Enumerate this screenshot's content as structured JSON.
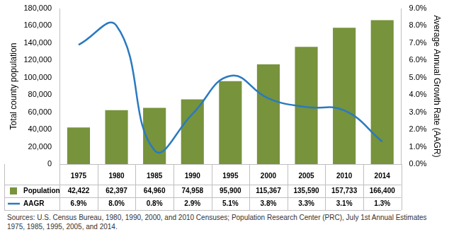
{
  "chart_data": {
    "type": "bar",
    "categories": [
      "1975",
      "1980",
      "1985",
      "1990",
      "1995",
      "2000",
      "2005",
      "2010",
      "2014"
    ],
    "series": [
      {
        "name": "Population",
        "type": "bar",
        "color": "#77933C",
        "values": [
          42422,
          62397,
          64960,
          74958,
          95900,
          115367,
          135590,
          157733,
          166400
        ],
        "value_labels": [
          "42,422",
          "62,397",
          "64,960",
          "74,958",
          "95,900",
          "115,367",
          "135,590",
          "157,733",
          "166,400"
        ]
      },
      {
        "name": "AAGR",
        "type": "line",
        "color": "#2A7ABF",
        "axis": "y2",
        "marker": "none",
        "line_style": "solid",
        "values": [
          6.9,
          8.0,
          0.8,
          2.9,
          5.1,
          3.8,
          3.3,
          3.1,
          1.3
        ],
        "value_labels": [
          "6.9%",
          "8.0%",
          "0.8%",
          "2.9%",
          "5.1%",
          "3.8%",
          "3.3%",
          "3.1%",
          "1.3%"
        ]
      }
    ],
    "ylabel": "Total county population",
    "y2label": "Average Annual Growth Rate (AAGR)",
    "ylim": [
      0,
      180000
    ],
    "yticks": [
      0,
      {
        "value": 20000,
        "label": "20,000"
      },
      {
        "value": 40000,
        "label": "40,000"
      },
      {
        "value": 60000,
        "label": "60,000"
      },
      {
        "value": 80000,
        "label": "80,000"
      },
      {
        "value": 100000,
        "label": "100,000"
      },
      {
        "value": 120000,
        "label": "120,000"
      },
      {
        "value": 140000,
        "label": "140,000"
      },
      {
        "value": 160000,
        "label": "160,000"
      },
      {
        "value": 180000,
        "label": "180,000"
      }
    ],
    "y2lim": [
      0,
      9
    ],
    "y2ticks": [
      {
        "value": 0,
        "label": "0.0%"
      },
      {
        "value": 1,
        "label": "1.0%"
      },
      {
        "value": 2,
        "label": "2.0%"
      },
      {
        "value": 3,
        "label": "3.0%"
      },
      {
        "value": 4,
        "label": "4.0%"
      },
      {
        "value": 5,
        "label": "5.0%"
      },
      {
        "value": 6,
        "label": "6.0%"
      },
      {
        "value": 7,
        "label": "7.0%"
      },
      {
        "value": 8,
        "label": "8.0%"
      },
      {
        "value": 9,
        "label": "9.0%"
      }
    ],
    "grid": false,
    "source": "Sources: U.S. Census Bureau, 1980, 1990, 2000, and 2010 Censuses; Population Research Center (PRC), July 1st Annual Estimates 1975, 1985, 1995, 2005, and 2014."
  }
}
